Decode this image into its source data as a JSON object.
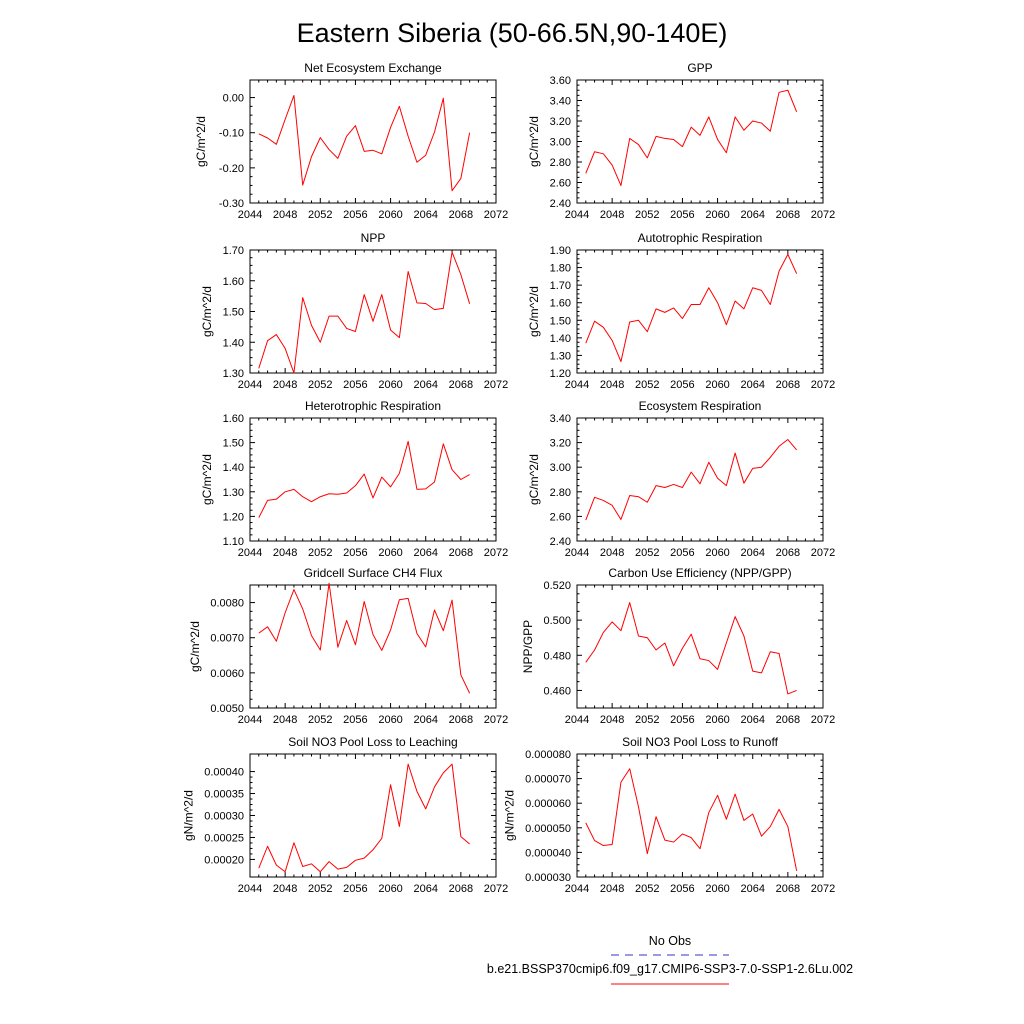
{
  "figure": {
    "title": "Eastern Siberia (50-66.5N,90-140E)"
  },
  "legend": {
    "entries": [
      {
        "label": "No Obs",
        "color": "#3333cc",
        "style": "dashed"
      },
      {
        "label": "b.e21.BSSP370cmip6.f09_g17.CMIP6-SSP3-7.0-SSP1-2.6Lu.002",
        "color": "#ff0000",
        "style": "solid"
      }
    ]
  },
  "colors": {
    "series": "#ff0000",
    "legend_dash": "#3333cc",
    "frame": "#000000"
  },
  "chart_data": [
    {
      "type": "line",
      "title": "Net Ecosystem Exchange",
      "ylabel": "gC/m^2/d",
      "xlim": [
        2044,
        2072
      ],
      "ylim": [
        -0.3,
        0.05
      ],
      "x_ticks": [
        2044,
        2048,
        2052,
        2056,
        2060,
        2064,
        2068,
        2072
      ],
      "x_tick_labels": [
        "2044",
        "2048",
        "2052",
        "2056",
        "2060",
        "2064",
        "2068",
        "2072"
      ],
      "y_ticks": [
        -0.3,
        -0.2,
        -0.1,
        0.0
      ],
      "y_tick_labels": [
        "-0.30",
        "-0.20",
        "-0.10",
        "0.00"
      ],
      "grid": false,
      "x": [
        2045,
        2046,
        2047,
        2048,
        2049,
        2050,
        2051,
        2052,
        2053,
        2054,
        2055,
        2056,
        2057,
        2058,
        2059,
        2060,
        2061,
        2062,
        2063,
        2064,
        2065,
        2066,
        2067,
        2068,
        2069
      ],
      "series": [
        {
          "values": [
            -0.103,
            -0.115,
            -0.133,
            -0.062,
            0.006,
            -0.249,
            -0.168,
            -0.114,
            -0.148,
            -0.173,
            -0.11,
            -0.08,
            -0.153,
            -0.15,
            -0.16,
            -0.085,
            -0.025,
            -0.11,
            -0.184,
            -0.164,
            -0.098,
            -0.002,
            -0.265,
            -0.23,
            -0.1
          ]
        }
      ]
    },
    {
      "type": "line",
      "title": "GPP",
      "ylabel": "gC/m^2/d",
      "xlim": [
        2044,
        2072
      ],
      "ylim": [
        2.4,
        3.6
      ],
      "x_ticks": [
        2044,
        2048,
        2052,
        2056,
        2060,
        2064,
        2068,
        2072
      ],
      "x_tick_labels": [
        "2044",
        "2048",
        "2052",
        "2056",
        "2060",
        "2064",
        "2068",
        "2072"
      ],
      "y_ticks": [
        2.4,
        2.6,
        2.8,
        3.0,
        3.2,
        3.4,
        3.6
      ],
      "y_tick_labels": [
        "2.40",
        "2.60",
        "2.80",
        "3.00",
        "3.20",
        "3.40",
        "3.60"
      ],
      "grid": false,
      "x": [
        2045,
        2046,
        2047,
        2048,
        2049,
        2050,
        2051,
        2052,
        2053,
        2054,
        2055,
        2056,
        2057,
        2058,
        2059,
        2060,
        2061,
        2062,
        2063,
        2064,
        2065,
        2066,
        2067,
        2068,
        2069
      ],
      "series": [
        {
          "values": [
            2.69,
            2.9,
            2.88,
            2.77,
            2.57,
            3.03,
            2.97,
            2.84,
            3.05,
            3.03,
            3.02,
            2.95,
            3.14,
            3.06,
            3.24,
            3.02,
            2.89,
            3.24,
            3.11,
            3.2,
            3.18,
            3.1,
            3.48,
            3.5,
            3.29
          ]
        }
      ]
    },
    {
      "type": "line",
      "title": "NPP",
      "ylabel": "gC/m^2/d",
      "xlim": [
        2044,
        2072
      ],
      "ylim": [
        1.3,
        1.7
      ],
      "x_ticks": [
        2044,
        2048,
        2052,
        2056,
        2060,
        2064,
        2068,
        2072
      ],
      "x_tick_labels": [
        "2044",
        "2048",
        "2052",
        "2056",
        "2060",
        "2064",
        "2068",
        "2072"
      ],
      "y_ticks": [
        1.3,
        1.4,
        1.5,
        1.6,
        1.7
      ],
      "y_tick_labels": [
        "1.30",
        "1.40",
        "1.50",
        "1.60",
        "1.70"
      ],
      "grid": false,
      "x": [
        2045,
        2046,
        2047,
        2048,
        2049,
        2050,
        2051,
        2052,
        2053,
        2054,
        2055,
        2056,
        2057,
        2058,
        2059,
        2060,
        2061,
        2062,
        2063,
        2064,
        2065,
        2066,
        2067,
        2068,
        2069
      ],
      "series": [
        {
          "values": [
            1.315,
            1.405,
            1.425,
            1.38,
            1.3,
            1.545,
            1.455,
            1.4,
            1.485,
            1.485,
            1.445,
            1.435,
            1.555,
            1.468,
            1.555,
            1.44,
            1.415,
            1.63,
            1.528,
            1.526,
            1.506,
            1.51,
            1.693,
            1.62,
            1.525
          ]
        }
      ]
    },
    {
      "type": "line",
      "title": "Autotrophic Respiration",
      "ylabel": "gC/m^2/d",
      "xlim": [
        2044,
        2072
      ],
      "ylim": [
        1.2,
        1.9
      ],
      "x_ticks": [
        2044,
        2048,
        2052,
        2056,
        2060,
        2064,
        2068,
        2072
      ],
      "x_tick_labels": [
        "2044",
        "2048",
        "2052",
        "2056",
        "2060",
        "2064",
        "2068",
        "2072"
      ],
      "y_ticks": [
        1.2,
        1.3,
        1.4,
        1.5,
        1.6,
        1.7,
        1.8,
        1.9
      ],
      "y_tick_labels": [
        "1.20",
        "1.30",
        "1.40",
        "1.50",
        "1.60",
        "1.70",
        "1.80",
        "1.90"
      ],
      "grid": false,
      "x": [
        2045,
        2046,
        2047,
        2048,
        2049,
        2050,
        2051,
        2052,
        2053,
        2054,
        2055,
        2056,
        2057,
        2058,
        2059,
        2060,
        2061,
        2062,
        2063,
        2064,
        2065,
        2066,
        2067,
        2068,
        2069
      ],
      "series": [
        {
          "values": [
            1.37,
            1.495,
            1.46,
            1.385,
            1.265,
            1.49,
            1.5,
            1.435,
            1.565,
            1.545,
            1.57,
            1.51,
            1.59,
            1.59,
            1.685,
            1.6,
            1.475,
            1.61,
            1.565,
            1.685,
            1.67,
            1.59,
            1.78,
            1.875,
            1.765
          ]
        }
      ]
    },
    {
      "type": "line",
      "title": "Heterotrophic Respiration",
      "ylabel": "gC/m^2/d",
      "xlim": [
        2044,
        2072
      ],
      "ylim": [
        1.1,
        1.6
      ],
      "x_ticks": [
        2044,
        2048,
        2052,
        2056,
        2060,
        2064,
        2068,
        2072
      ],
      "x_tick_labels": [
        "2044",
        "2048",
        "2052",
        "2056",
        "2060",
        "2064",
        "2068",
        "2072"
      ],
      "y_ticks": [
        1.1,
        1.2,
        1.3,
        1.4,
        1.5,
        1.6
      ],
      "y_tick_labels": [
        "1.10",
        "1.20",
        "1.30",
        "1.40",
        "1.50",
        "1.60"
      ],
      "grid": false,
      "x": [
        2045,
        2046,
        2047,
        2048,
        2049,
        2050,
        2051,
        2052,
        2053,
        2054,
        2055,
        2056,
        2057,
        2058,
        2059,
        2060,
        2061,
        2062,
        2063,
        2064,
        2065,
        2066,
        2067,
        2068,
        2069
      ],
      "series": [
        {
          "values": [
            1.195,
            1.265,
            1.27,
            1.3,
            1.31,
            1.28,
            1.26,
            1.28,
            1.292,
            1.29,
            1.295,
            1.325,
            1.372,
            1.275,
            1.36,
            1.32,
            1.375,
            1.505,
            1.31,
            1.312,
            1.34,
            1.495,
            1.39,
            1.35,
            1.37
          ]
        }
      ]
    },
    {
      "type": "line",
      "title": "Ecosystem Respiration",
      "ylabel": "gC/m^2/d",
      "xlim": [
        2044,
        2072
      ],
      "ylim": [
        2.4,
        3.4
      ],
      "x_ticks": [
        2044,
        2048,
        2052,
        2056,
        2060,
        2064,
        2068,
        2072
      ],
      "x_tick_labels": [
        "2044",
        "2048",
        "2052",
        "2056",
        "2060",
        "2064",
        "2068",
        "2072"
      ],
      "y_ticks": [
        2.4,
        2.6,
        2.8,
        3.0,
        3.2,
        3.4
      ],
      "y_tick_labels": [
        "2.40",
        "2.60",
        "2.80",
        "3.00",
        "3.20",
        "3.40"
      ],
      "grid": false,
      "x": [
        2045,
        2046,
        2047,
        2048,
        2049,
        2050,
        2051,
        2052,
        2053,
        2054,
        2055,
        2056,
        2057,
        2058,
        2059,
        2060,
        2061,
        2062,
        2063,
        2064,
        2065,
        2066,
        2067,
        2068,
        2069
      ],
      "series": [
        {
          "values": [
            2.57,
            2.755,
            2.73,
            2.69,
            2.575,
            2.77,
            2.76,
            2.715,
            2.85,
            2.835,
            2.86,
            2.835,
            2.96,
            2.865,
            3.04,
            2.91,
            2.85,
            3.115,
            2.87,
            2.99,
            3.0,
            3.08,
            3.17,
            3.225,
            3.14
          ]
        }
      ]
    },
    {
      "type": "line",
      "title": "Gridcell Surface CH4 Flux",
      "ylabel": "gC/m^2/d",
      "xlim": [
        2044,
        2072
      ],
      "ylim": [
        0.005,
        0.0085
      ],
      "x_ticks": [
        2044,
        2048,
        2052,
        2056,
        2060,
        2064,
        2068,
        2072
      ],
      "x_tick_labels": [
        "2044",
        "2048",
        "2052",
        "2056",
        "2060",
        "2064",
        "2068",
        "2072"
      ],
      "y_ticks": [
        0.005,
        0.006,
        0.007,
        0.008
      ],
      "y_tick_labels": [
        "0.0050",
        "0.0060",
        "0.0070",
        "0.0080"
      ],
      "grid": false,
      "x": [
        2045,
        2046,
        2047,
        2048,
        2049,
        2050,
        2051,
        2052,
        2053,
        2054,
        2055,
        2056,
        2057,
        2058,
        2059,
        2060,
        2061,
        2062,
        2063,
        2064,
        2065,
        2066,
        2067,
        2068,
        2069
      ],
      "series": [
        {
          "values": [
            0.00713,
            0.00731,
            0.0069,
            0.00771,
            0.00837,
            0.00782,
            0.00706,
            0.00665,
            0.00855,
            0.00673,
            0.00749,
            0.0068,
            0.00803,
            0.00709,
            0.00664,
            0.00722,
            0.00808,
            0.00812,
            0.00712,
            0.00674,
            0.00779,
            0.0072,
            0.00807,
            0.00594,
            0.00542
          ]
        }
      ]
    },
    {
      "type": "line",
      "title": "Carbon Use Efficiency (NPP/GPP)",
      "ylabel": "NPP/GPP",
      "xlim": [
        2044,
        2072
      ],
      "ylim": [
        0.45,
        0.52
      ],
      "x_ticks": [
        2044,
        2048,
        2052,
        2056,
        2060,
        2064,
        2068,
        2072
      ],
      "x_tick_labels": [
        "2044",
        "2048",
        "2052",
        "2056",
        "2060",
        "2064",
        "2068",
        "2072"
      ],
      "y_ticks": [
        0.46,
        0.48,
        0.5,
        0.52
      ],
      "y_tick_labels": [
        "0.460",
        "0.480",
        "0.500",
        "0.520"
      ],
      "grid": false,
      "x": [
        2045,
        2046,
        2047,
        2048,
        2049,
        2050,
        2051,
        2052,
        2053,
        2054,
        2055,
        2056,
        2057,
        2058,
        2059,
        2060,
        2061,
        2062,
        2063,
        2064,
        2065,
        2066,
        2067,
        2068,
        2069
      ],
      "series": [
        {
          "values": [
            0.476,
            0.483,
            0.493,
            0.499,
            0.494,
            0.51,
            0.491,
            0.49,
            0.483,
            0.487,
            0.474,
            0.484,
            0.492,
            0.478,
            0.477,
            0.472,
            0.487,
            0.502,
            0.491,
            0.471,
            0.47,
            0.482,
            0.481,
            0.458,
            0.46
          ]
        }
      ]
    },
    {
      "type": "line",
      "title": "Soil NO3 Pool Loss to Leaching",
      "ylabel": "gN/m^2/d",
      "xlim": [
        2044,
        2072
      ],
      "ylim": [
        0.00016,
        0.00044
      ],
      "x_ticks": [
        2044,
        2048,
        2052,
        2056,
        2060,
        2064,
        2068,
        2072
      ],
      "x_tick_labels": [
        "2044",
        "2048",
        "2052",
        "2056",
        "2060",
        "2064",
        "2068",
        "2072"
      ],
      "y_ticks": [
        0.0002,
        0.00025,
        0.0003,
        0.00035,
        0.0004
      ],
      "y_tick_labels": [
        "0.00020",
        "0.00025",
        "0.00030",
        "0.00035",
        "0.00040"
      ],
      "grid": false,
      "x": [
        2045,
        2046,
        2047,
        2048,
        2049,
        2050,
        2051,
        2052,
        2053,
        2054,
        2055,
        2056,
        2057,
        2058,
        2059,
        2060,
        2061,
        2062,
        2063,
        2064,
        2065,
        2066,
        2067,
        2068,
        2069
      ],
      "series": [
        {
          "values": [
            0.00018,
            0.00023,
            0.000187,
            0.000172,
            0.000238,
            0.000184,
            0.00019,
            0.000172,
            0.000195,
            0.000178,
            0.000182,
            0.000198,
            0.000203,
            0.000222,
            0.000248,
            0.00037,
            0.000275,
            0.000417,
            0.000355,
            0.000315,
            0.000365,
            0.000397,
            0.000417,
            0.000252,
            0.000235
          ]
        }
      ]
    },
    {
      "type": "line",
      "title": "Soil NO3 Pool Loss to Runoff",
      "ylabel": "gN/m^2/d",
      "xlim": [
        2044,
        2072
      ],
      "ylim": [
        3e-05,
        8e-05
      ],
      "x_ticks": [
        2044,
        2048,
        2052,
        2056,
        2060,
        2064,
        2068,
        2072
      ],
      "x_tick_labels": [
        "2044",
        "2048",
        "2052",
        "2056",
        "2060",
        "2064",
        "2068",
        "2072"
      ],
      "y_ticks": [
        3e-05,
        4e-05,
        5e-05,
        6e-05,
        7e-05,
        8e-05
      ],
      "y_tick_labels": [
        "0.000030",
        "0.000040",
        "0.000050",
        "0.000060",
        "0.000070",
        "0.000080"
      ],
      "grid": false,
      "x": [
        2045,
        2046,
        2047,
        2048,
        2049,
        2050,
        2051,
        2052,
        2053,
        2054,
        2055,
        2056,
        2057,
        2058,
        2059,
        2060,
        2061,
        2062,
        2063,
        2064,
        2065,
        2066,
        2067,
        2068,
        2069
      ],
      "series": [
        {
          "values": [
            5.2e-05,
            4.48e-05,
            4.28e-05,
            4.32e-05,
            6.85e-05,
            7.4e-05,
            5.85e-05,
            3.95e-05,
            5.45e-05,
            4.5e-05,
            4.42e-05,
            4.75e-05,
            4.6e-05,
            4.15e-05,
            5.62e-05,
            6.32e-05,
            5.35e-05,
            6.37e-05,
            5.3e-05,
            5.56e-05,
            4.66e-05,
            5.05e-05,
            5.75e-05,
            5.05e-05,
            3.25e-05
          ]
        }
      ]
    }
  ]
}
